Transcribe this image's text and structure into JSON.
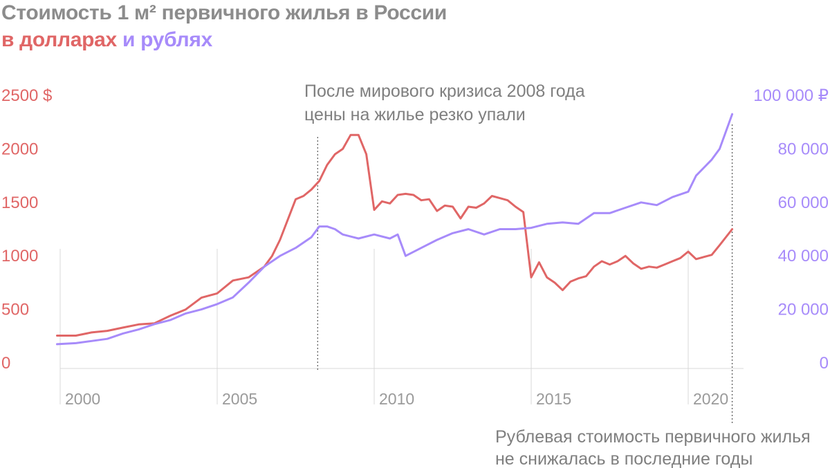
{
  "title": {
    "line1": "Стоимость 1 м² первичного жилья в России",
    "line2_usd": "в долларах",
    "line2_rub": "и рублях"
  },
  "colors": {
    "usd": "#e06666",
    "rub": "#a78bfa",
    "title_gray": "#8c8c8c",
    "annotation_gray": "#7f7f7f",
    "axis_gray": "#9a9a9a",
    "grid": "#d9d9d9"
  },
  "annotations": {
    "crisis": [
      "После мирового кризиса 2008 года",
      "цены на жилье резко упали"
    ],
    "recent": [
      "Рублевая стоимость первичного жилья",
      "не снижалась в последние годы"
    ]
  },
  "chart_data": {
    "type": "line",
    "xlabel": "",
    "x_ticks": [
      "2000",
      "2005",
      "2010",
      "2015",
      "2020"
    ],
    "xlim": [
      2000,
      2021.4
    ],
    "y_left": {
      "ticks": [
        "0",
        "500",
        "1000",
        "1500",
        "2000",
        "2500 $"
      ],
      "lim": [
        0,
        2500
      ]
    },
    "y_right": {
      "ticks": [
        "0",
        "20 000",
        "40 000",
        "60 000",
        "80 000",
        "100 000 ₽"
      ],
      "lim": [
        0,
        100000
      ]
    },
    "reference_lines": [
      2008.2,
      2021.4
    ],
    "series": [
      {
        "axis": "left",
        "x": [
          1999.9,
          2000.5,
          2001.0,
          2001.5,
          2002.0,
          2002.5,
          2003.0,
          2003.5,
          2004.0,
          2004.5,
          2005.0,
          2005.5,
          2006.0,
          2006.5,
          2006.75,
          2007.0,
          2007.5,
          2007.75,
          2008.0,
          2008.25,
          2008.5,
          2008.75,
          2009.0,
          2009.25,
          2009.5,
          2009.75,
          2010.0,
          2010.25,
          2010.5,
          2010.75,
          2011.0,
          2011.25,
          2011.5,
          2011.75,
          2012.0,
          2012.25,
          2012.5,
          2012.75,
          2013.0,
          2013.25,
          2013.5,
          2013.75,
          2014.0,
          2014.25,
          2014.5,
          2014.75,
          2015.0,
          2015.25,
          2015.5,
          2015.75,
          2016.0,
          2016.25,
          2016.5,
          2016.75,
          2017.0,
          2017.25,
          2017.5,
          2017.75,
          2018.0,
          2018.25,
          2018.5,
          2018.75,
          2019.0,
          2019.25,
          2019.5,
          2019.75,
          2020.0,
          2020.25,
          2020.5,
          2020.75,
          2021.0,
          2021.4
        ],
        "values": [
          255,
          255,
          285,
          300,
          330,
          360,
          370,
          440,
          500,
          610,
          650,
          770,
          800,
          900,
          1000,
          1150,
          1530,
          1560,
          1620,
          1700,
          1850,
          1950,
          2000,
          2130,
          2130,
          1950,
          1430,
          1510,
          1490,
          1570,
          1580,
          1570,
          1520,
          1530,
          1420,
          1470,
          1460,
          1350,
          1460,
          1450,
          1490,
          1560,
          1540,
          1520,
          1460,
          1410,
          800,
          940,
          800,
          750,
          680,
          760,
          790,
          810,
          900,
          950,
          920,
          950,
          1000,
          930,
          880,
          900,
          890,
          920,
          950,
          980,
          1040,
          970,
          990,
          1010,
          1100,
          1250
        ]
      },
      {
        "axis": "right",
        "x": [
          1999.9,
          2000.5,
          2001.0,
          2001.5,
          2002.0,
          2002.5,
          2003.0,
          2003.5,
          2004.0,
          2004.5,
          2005.0,
          2005.5,
          2006.0,
          2006.5,
          2007.0,
          2007.5,
          2008.0,
          2008.25,
          2008.5,
          2008.75,
          2009.0,
          2009.5,
          2010.0,
          2010.5,
          2010.75,
          2011.0,
          2011.5,
          2012.0,
          2012.5,
          2013.0,
          2013.5,
          2014.0,
          2014.5,
          2015.0,
          2015.5,
          2016.0,
          2016.5,
          2017.0,
          2017.5,
          2018.0,
          2018.5,
          2019.0,
          2019.5,
          2020.0,
          2020.25,
          2020.5,
          2020.75,
          2021.0,
          2021.4
        ],
        "values": [
          7000,
          7400,
          8200,
          9000,
          11000,
          12500,
          14500,
          16000,
          18500,
          20000,
          22000,
          24500,
          30000,
          36000,
          40000,
          43000,
          47000,
          51000,
          51000,
          50000,
          48000,
          46500,
          48000,
          46500,
          48000,
          40000,
          43000,
          46000,
          48500,
          50000,
          48000,
          50000,
          50000,
          50500,
          52000,
          52500,
          52000,
          56000,
          56000,
          58000,
          60000,
          59000,
          62000,
          64000,
          70000,
          73000,
          76000,
          80000,
          93000
        ]
      }
    ]
  }
}
